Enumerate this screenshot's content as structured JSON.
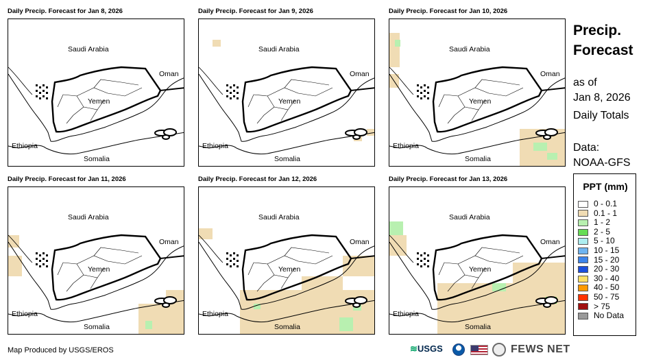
{
  "panels": [
    {
      "title": "Daily Precip. Forecast for Jan 8, 2026"
    },
    {
      "title": "Daily Precip. Forecast for Jan 9, 2026"
    },
    {
      "title": "Daily Precip. Forecast for Jan 10, 2026"
    },
    {
      "title": "Daily Precip. Forecast for Jan 11, 2026"
    },
    {
      "title": "Daily Precip. Forecast for Jan 12, 2026"
    },
    {
      "title": "Daily Precip. Forecast for Jan 13, 2026"
    }
  ],
  "map_labels": {
    "saudi": "Saudi Arabia",
    "oman": "Oman",
    "yemen": "Yemen",
    "ethiopia": "Ethiopia",
    "somalia": "Somalia"
  },
  "side": {
    "title": "Precip. Forecast",
    "as_of": "as of",
    "date": "Jan 8, 2026",
    "totals": "Daily Totals",
    "data_label": "Data:",
    "source": "NOAA-GFS"
  },
  "legend": {
    "title": "PPT (mm)",
    "items": [
      {
        "label": "0 - 0.1",
        "color": "#ffffff"
      },
      {
        "label": "0.1 - 1",
        "color": "#f0dcb4"
      },
      {
        "label": "1 - 2",
        "color": "#b8f0b0"
      },
      {
        "label": "2 - 5",
        "color": "#66dd55"
      },
      {
        "label": "5 - 10",
        "color": "#aeeef0"
      },
      {
        "label": "10 - 15",
        "color": "#6fb4f0"
      },
      {
        "label": "15 - 20",
        "color": "#3d84ea"
      },
      {
        "label": "20 - 30",
        "color": "#1c4fdc"
      },
      {
        "label": "30 - 40",
        "color": "#ffe066"
      },
      {
        "label": "40 - 50",
        "color": "#ff9900"
      },
      {
        "label": "50 - 75",
        "color": "#ff3300"
      },
      {
        "label": "> 75",
        "color": "#a01010"
      },
      {
        "label": "No Data",
        "color": "#999999"
      }
    ]
  },
  "credit": "Map Produced by USGS/EROS",
  "logos": {
    "usgs": "USGS",
    "fews": "FEWS NET"
  }
}
